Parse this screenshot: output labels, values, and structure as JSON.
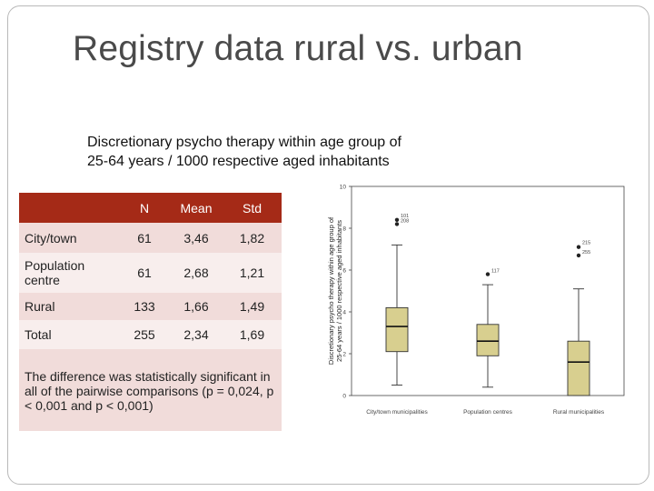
{
  "slide": {
    "title": "Registry data rural vs. urban",
    "subtitle_line1": "Discretionary psycho therapy within age group of",
    "subtitle_line2": "25-64 years / 1000 respective aged inhabitants"
  },
  "table": {
    "headers": [
      "",
      "N",
      "Mean",
      "Std"
    ],
    "rows": [
      {
        "label": "City/town",
        "n": "61",
        "mean": "3,46",
        "std": "1,82"
      },
      {
        "label": "Population centre",
        "n": "61",
        "mean": "2,68",
        "std": "1,21"
      },
      {
        "label": "Rural",
        "n": "133",
        "mean": "1,66",
        "std": "1,49"
      },
      {
        "label": "Total",
        "n": "255",
        "mean": "2,34",
        "std": "1,69"
      }
    ],
    "note": "The difference was statistically significant in all of the pairwise comparisons (p = 0,024, p < 0,001 and p < 0,001)"
  },
  "colors": {
    "header_bg": "#a52a17",
    "box_fill": "#d8cf8f",
    "row_dark": "#f1dcda",
    "row_light": "#f8eeed"
  },
  "chart_data": {
    "type": "boxplot",
    "ylabel": "Discretionary psycho therapy within age group of 25-64 years / 1000 respective aged inhabitants",
    "ylim": [
      0,
      10
    ],
    "yticks": [
      0,
      2,
      4,
      6,
      8,
      10
    ],
    "categories": [
      "City/town municipalities",
      "Population centres",
      "Rural municipalities"
    ],
    "boxes": [
      {
        "whisker_low": 0.5,
        "q1": 2.1,
        "median": 3.3,
        "q3": 4.2,
        "whisker_high": 7.2,
        "outliers": [
          {
            "value": 8.2,
            "label": "208"
          },
          {
            "value": 8.4,
            "label": "101"
          }
        ]
      },
      {
        "whisker_low": 0.4,
        "q1": 1.9,
        "median": 2.6,
        "q3": 3.4,
        "whisker_high": 5.3,
        "outliers": [
          {
            "value": 5.8,
            "label": "117"
          }
        ]
      },
      {
        "whisker_low": 0.0,
        "q1": 0.0,
        "median": 1.6,
        "q3": 2.6,
        "whisker_high": 5.1,
        "outliers": [
          {
            "value": 6.7,
            "label": "255"
          },
          {
            "value": 7.1,
            "label": "215"
          }
        ]
      }
    ]
  }
}
